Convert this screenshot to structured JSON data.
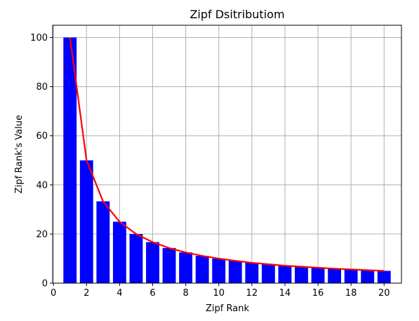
{
  "chart_data": {
    "type": "bar",
    "title": "Zipf Dsitributiom",
    "xlabel": "Zipf Rank",
    "ylabel": "Zipf Rank's Value",
    "xlim": [
      -0.05,
      21.05
    ],
    "ylim": [
      0,
      105
    ],
    "grid": true,
    "xticks": [
      0,
      2,
      4,
      6,
      8,
      10,
      12,
      14,
      16,
      18,
      20
    ],
    "yticks": [
      0,
      20,
      40,
      60,
      80,
      100
    ],
    "bars": {
      "color": "#0000ff",
      "x": [
        1,
        2,
        3,
        4,
        5,
        6,
        7,
        8,
        9,
        10,
        11,
        12,
        13,
        14,
        15,
        16,
        17,
        18,
        19,
        20
      ],
      "values": [
        100,
        50,
        33.3,
        25,
        20,
        16.7,
        14.3,
        12.5,
        11.1,
        10,
        9.1,
        8.3,
        7.7,
        7.1,
        6.7,
        6.3,
        5.9,
        5.6,
        5.3,
        5
      ]
    },
    "line": {
      "color": "#ff0000",
      "x": [
        1,
        2,
        3,
        4,
        5,
        6,
        7,
        8,
        9,
        10,
        11,
        12,
        13,
        14,
        15,
        16,
        17,
        18,
        19,
        20
      ],
      "values": [
        100,
        50,
        33.3,
        25,
        20,
        16.7,
        14.3,
        12.5,
        11.1,
        10,
        9.1,
        8.3,
        7.7,
        7.1,
        6.7,
        6.3,
        5.9,
        5.6,
        5.3,
        5
      ]
    }
  }
}
